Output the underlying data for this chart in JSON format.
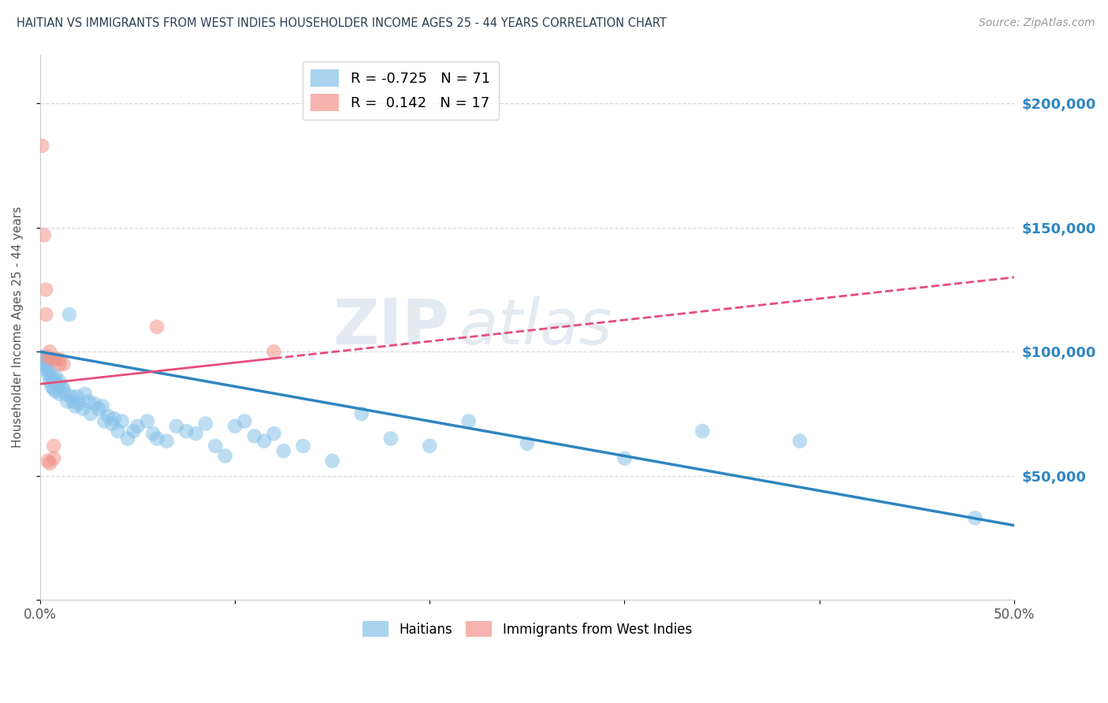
{
  "title": "HAITIAN VS IMMIGRANTS FROM WEST INDIES HOUSEHOLDER INCOME AGES 25 - 44 YEARS CORRELATION CHART",
  "source": "Source: ZipAtlas.com",
  "ylabel": "Householder Income Ages 25 - 44 years",
  "xlim": [
    0.0,
    0.5
  ],
  "ylim": [
    0,
    220000
  ],
  "haitian_x": [
    0.001,
    0.002,
    0.002,
    0.003,
    0.003,
    0.004,
    0.004,
    0.005,
    0.005,
    0.006,
    0.006,
    0.007,
    0.007,
    0.008,
    0.008,
    0.009,
    0.01,
    0.01,
    0.011,
    0.012,
    0.013,
    0.014,
    0.015,
    0.016,
    0.017,
    0.018,
    0.019,
    0.02,
    0.022,
    0.023,
    0.025,
    0.026,
    0.028,
    0.03,
    0.032,
    0.033,
    0.035,
    0.037,
    0.038,
    0.04,
    0.042,
    0.045,
    0.048,
    0.05,
    0.055,
    0.058,
    0.06,
    0.065,
    0.07,
    0.075,
    0.08,
    0.085,
    0.09,
    0.095,
    0.1,
    0.105,
    0.11,
    0.115,
    0.12,
    0.125,
    0.135,
    0.15,
    0.165,
    0.18,
    0.2,
    0.22,
    0.25,
    0.3,
    0.34,
    0.39,
    0.48
  ],
  "haitian_y": [
    98000,
    97000,
    95000,
    96000,
    93000,
    94000,
    91000,
    92000,
    88000,
    90000,
    86000,
    88000,
    85000,
    90000,
    84000,
    87000,
    88000,
    83000,
    86000,
    85000,
    83000,
    80000,
    115000,
    82000,
    80000,
    78000,
    82000,
    79000,
    77000,
    83000,
    80000,
    75000,
    79000,
    77000,
    78000,
    72000,
    74000,
    71000,
    73000,
    68000,
    72000,
    65000,
    68000,
    70000,
    72000,
    67000,
    65000,
    64000,
    70000,
    68000,
    67000,
    71000,
    62000,
    58000,
    70000,
    72000,
    66000,
    64000,
    67000,
    60000,
    62000,
    56000,
    75000,
    65000,
    62000,
    72000,
    63000,
    57000,
    68000,
    64000,
    33000
  ],
  "westindies_x": [
    0.001,
    0.002,
    0.003,
    0.003,
    0.004,
    0.004,
    0.005,
    0.005,
    0.006,
    0.007,
    0.007,
    0.008,
    0.01,
    0.01,
    0.012,
    0.06,
    0.12
  ],
  "westindies_y": [
    183000,
    147000,
    115000,
    125000,
    98000,
    56000,
    100000,
    55000,
    97000,
    62000,
    57000,
    97000,
    95000,
    97000,
    95000,
    110000,
    100000
  ],
  "haitian_color": "#85c1e9",
  "westindies_color": "#f1948a",
  "haitian_line_color": "#2e86c1",
  "westindies_line_color": "#e74c7c",
  "background_color": "#ffffff",
  "grid_color": "#d5d8dc",
  "title_color": "#2c3e50",
  "right_yaxis_color": "#2e86c1",
  "watermark_color": "#c8d6e5",
  "R_haitian": -0.725,
  "N_haitian": 71,
  "R_westindies": 0.142,
  "N_westindies": 17
}
